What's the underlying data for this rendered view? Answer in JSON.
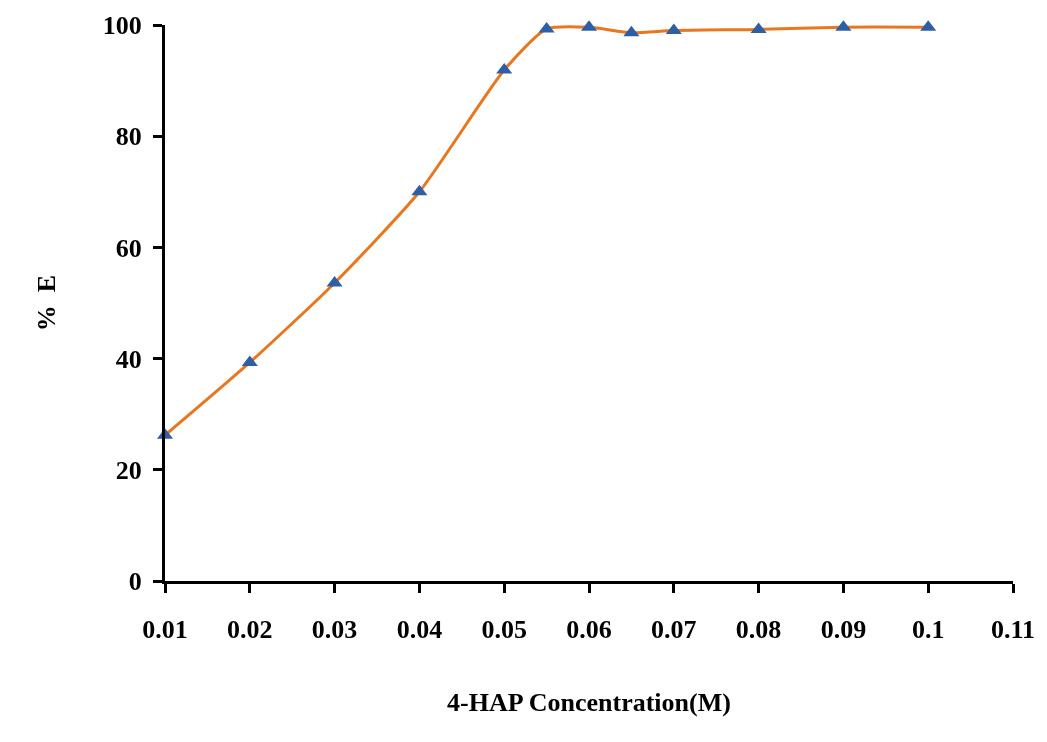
{
  "chart_data": {
    "type": "line",
    "xlabel": "4-HAP Concentration(M)",
    "ylabel": "%  E",
    "x": [
      0.01,
      0.02,
      0.03,
      0.04,
      0.05,
      0.055,
      0.06,
      0.065,
      0.07,
      0.08,
      0.09,
      0.1
    ],
    "series": [
      {
        "color": "#e87722",
        "colors": [
          "#2e5fa3",
          "#2e5fa3",
          "#2e5fa3",
          "#2e5fa3",
          "#2e5fa3",
          "#2e5fa3",
          "#2e5fa3",
          "#2e5fa3",
          "#2e5fa3",
          "#2e5fa3",
          "#2e5fa3",
          "#2e5fa3"
        ],
        "values": [
          26.2,
          39.3,
          53.6,
          70,
          91.9,
          99.3,
          99.6,
          98.6,
          99,
          99.2,
          99.6,
          99.6
        ]
      }
    ],
    "xlim": [
      0.01,
      0.11
    ],
    "xticks": [
      0.01,
      0.02,
      0.03,
      0.04,
      0.05,
      0.06,
      0.07,
      0.08,
      0.09,
      0.1,
      0.11
    ],
    "ylim": [
      0,
      100
    ],
    "yticks": [
      0,
      20,
      40,
      60,
      80,
      100
    ],
    "marker": "triangle",
    "line_style": "solid"
  }
}
